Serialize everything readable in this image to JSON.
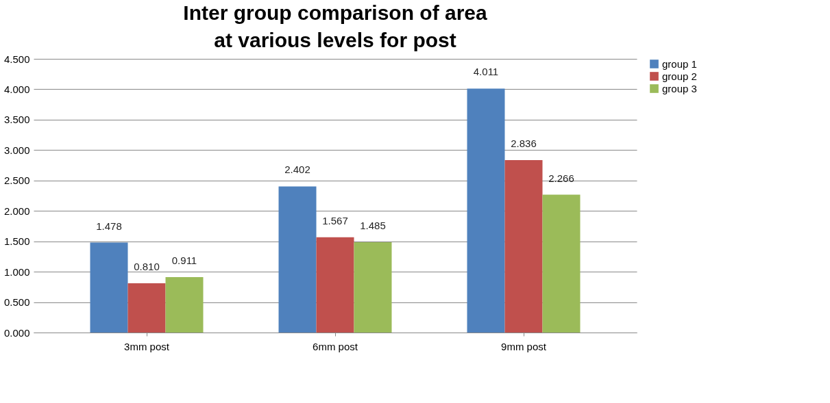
{
  "chart_data": {
    "type": "bar",
    "title": "Inter group comparison of area at various levels for post",
    "categories": [
      "3mm post",
      "6mm post",
      "9mm post"
    ],
    "series": [
      {
        "name": "group 1",
        "color": "#4f81bd",
        "values": [
          1.478,
          2.402,
          4.011
        ],
        "value_labels": [
          "1.478",
          "2.402",
          "4.011"
        ]
      },
      {
        "name": "group 2",
        "color": "#c0504d",
        "values": [
          0.81,
          1.567,
          2.836
        ],
        "value_labels": [
          "0.810",
          "1.567",
          "2.836"
        ]
      },
      {
        "name": "group 3",
        "color": "#9bbb59",
        "values": [
          0.911,
          1.485,
          2.266
        ],
        "value_labels": [
          "0.911",
          "1.485",
          "2.266"
        ]
      }
    ],
    "ylim": [
      0,
      4.5
    ],
    "yticks": [
      {
        "value": 0,
        "label": "0.000"
      },
      {
        "value": 0.5,
        "label": "0.500"
      },
      {
        "value": 1,
        "label": "1.000"
      },
      {
        "value": 1.5,
        "label": "1.500"
      },
      {
        "value": 2,
        "label": "2.000"
      },
      {
        "value": 2.5,
        "label": "2.500"
      },
      {
        "value": 3,
        "label": "3.000"
      },
      {
        "value": 3.5,
        "label": "3.500"
      },
      {
        "value": 4,
        "label": "4.000"
      },
      {
        "value": 4.5,
        "label": "4.500"
      }
    ],
    "grid": "y",
    "legend": "right"
  }
}
